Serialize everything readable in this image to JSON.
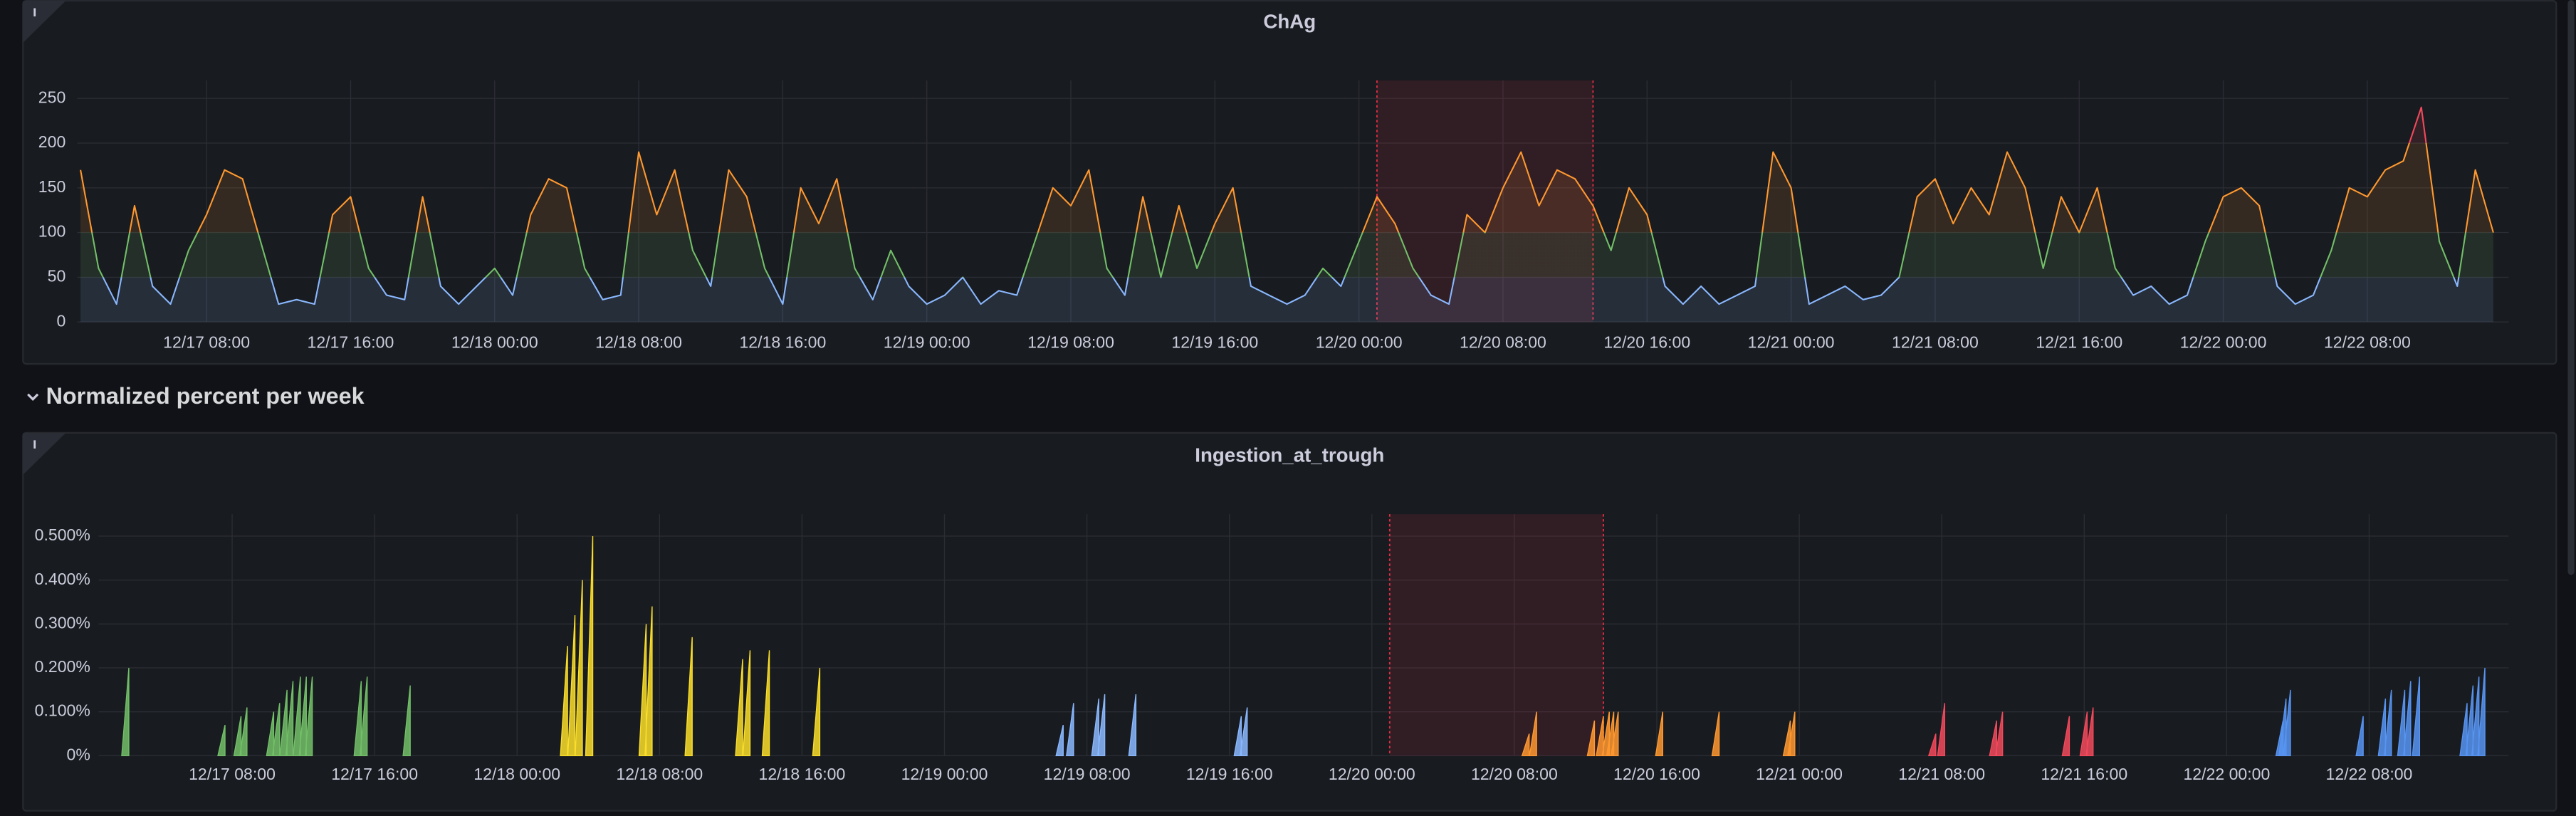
{
  "row_title": "Normalized percent per week",
  "chart_data": [
    {
      "type": "line",
      "title": "ChAg",
      "xlim": [
        "12/17 00:49",
        "12/22 15:51"
      ],
      "xticks": [
        "12/17 08:00",
        "12/17 16:00",
        "12/18 00:00",
        "12/18 08:00",
        "12/18 16:00",
        "12/19 00:00",
        "12/19 08:00",
        "12/19 16:00",
        "12/20 00:00",
        "12/20 08:00",
        "12/20 16:00",
        "12/21 00:00",
        "12/21 08:00",
        "12/21 16:00",
        "12/22 00:00",
        "12/22 08:00"
      ],
      "ylim": [
        0,
        270
      ],
      "yticks": [
        0,
        50,
        100,
        150,
        200,
        250
      ],
      "grid": true,
      "thresholds": [
        {
          "from": 0,
          "color": "#8ab8ff"
        },
        {
          "from": 50,
          "color": "#73bf69"
        },
        {
          "from": 100,
          "color": "#ff9830"
        },
        {
          "from": 200,
          "color": "#f2495c"
        }
      ],
      "annotation": {
        "start": "12/20 01:00",
        "end": "12/20 13:00",
        "color": "#e02f44"
      },
      "x": [
        "12/17 01:00",
        "12/17 02:00",
        "12/17 03:00",
        "12/17 04:00",
        "12/17 05:00",
        "12/17 06:00",
        "12/17 07:00",
        "12/17 08:00",
        "12/17 09:00",
        "12/17 10:00",
        "12/17 11:00",
        "12/17 12:00",
        "12/17 13:00",
        "12/17 14:00",
        "12/17 15:00",
        "12/17 16:00",
        "12/17 17:00",
        "12/17 18:00",
        "12/17 19:00",
        "12/17 20:00",
        "12/17 21:00",
        "12/17 22:00",
        "12/17 23:00",
        "12/18 00:00",
        "12/18 01:00",
        "12/18 02:00",
        "12/18 03:00",
        "12/18 04:00",
        "12/18 05:00",
        "12/18 06:00",
        "12/18 07:00",
        "12/18 08:00",
        "12/18 09:00",
        "12/18 10:00",
        "12/18 11:00",
        "12/18 12:00",
        "12/18 13:00",
        "12/18 14:00",
        "12/18 15:00",
        "12/18 16:00",
        "12/18 17:00",
        "12/18 18:00",
        "12/18 19:00",
        "12/18 20:00",
        "12/18 21:00",
        "12/18 22:00",
        "12/18 23:00",
        "12/19 00:00",
        "12/19 01:00",
        "12/19 02:00",
        "12/19 03:00",
        "12/19 04:00",
        "12/19 05:00",
        "12/19 06:00",
        "12/19 07:00",
        "12/19 08:00",
        "12/19 09:00",
        "12/19 10:00",
        "12/19 11:00",
        "12/19 12:00",
        "12/19 13:00",
        "12/19 14:00",
        "12/19 15:00",
        "12/19 16:00",
        "12/19 17:00",
        "12/19 18:00",
        "12/19 19:00",
        "12/19 20:00",
        "12/19 21:00",
        "12/19 22:00",
        "12/19 23:00",
        "12/20 00:00",
        "12/20 01:00",
        "12/20 02:00",
        "12/20 03:00",
        "12/20 04:00",
        "12/20 05:00",
        "12/20 06:00",
        "12/20 07:00",
        "12/20 08:00",
        "12/20 09:00",
        "12/20 10:00",
        "12/20 11:00",
        "12/20 12:00",
        "12/20 13:00",
        "12/20 14:00",
        "12/20 15:00",
        "12/20 16:00",
        "12/20 17:00",
        "12/20 18:00",
        "12/20 19:00",
        "12/20 20:00",
        "12/20 21:00",
        "12/20 22:00",
        "12/20 23:00",
        "12/21 00:00",
        "12/21 01:00",
        "12/21 02:00",
        "12/21 03:00",
        "12/21 04:00",
        "12/21 05:00",
        "12/21 06:00",
        "12/21 07:00",
        "12/21 08:00",
        "12/21 09:00",
        "12/21 10:00",
        "12/21 11:00",
        "12/21 12:00",
        "12/21 13:00",
        "12/21 14:00",
        "12/21 15:00",
        "12/21 16:00",
        "12/21 17:00",
        "12/21 18:00",
        "12/21 19:00",
        "12/21 20:00",
        "12/21 21:00",
        "12/21 22:00",
        "12/21 23:00",
        "12/22 00:00",
        "12/22 01:00",
        "12/22 02:00",
        "12/22 03:00",
        "12/22 04:00",
        "12/22 05:00",
        "12/22 06:00",
        "12/22 07:00",
        "12/22 08:00",
        "12/22 09:00",
        "12/22 10:00",
        "12/22 11:00",
        "12/22 12:00",
        "12/22 13:00",
        "12/22 14:00",
        "12/22 15:00"
      ],
      "values": [
        170,
        60,
        20,
        130,
        40,
        20,
        80,
        120,
        170,
        160,
        90,
        20,
        25,
        20,
        120,
        140,
        60,
        30,
        25,
        140,
        40,
        20,
        40,
        60,
        30,
        120,
        160,
        150,
        60,
        25,
        30,
        190,
        120,
        170,
        80,
        40,
        170,
        140,
        60,
        20,
        150,
        110,
        160,
        60,
        25,
        80,
        40,
        20,
        30,
        50,
        20,
        35,
        30,
        90,
        150,
        130,
        170,
        60,
        30,
        140,
        50,
        130,
        60,
        110,
        150,
        40,
        30,
        20,
        30,
        60,
        40,
        90,
        140,
        110,
        60,
        30,
        20,
        120,
        100,
        150,
        190,
        130,
        170,
        160,
        130,
        80,
        150,
        120,
        40,
        20,
        40,
        20,
        30,
        40,
        190,
        150,
        20,
        30,
        40,
        25,
        30,
        50,
        140,
        160,
        110,
        150,
        120,
        190,
        150,
        60,
        140,
        100,
        150,
        60,
        30,
        40,
        20,
        30,
        90,
        140,
        150,
        130,
        40,
        20,
        30,
        80,
        150,
        140,
        170,
        180,
        240,
        90,
        40,
        170,
        100
      ]
    },
    {
      "type": "bar",
      "title": "Ingestion_at_trough",
      "xlim": [
        "12/17 00:30",
        "12/22 15:50"
      ],
      "xticks": [
        "12/17 08:00",
        "12/17 16:00",
        "12/18 00:00",
        "12/18 08:00",
        "12/18 16:00",
        "12/19 00:00",
        "12/19 08:00",
        "12/19 16:00",
        "12/20 00:00",
        "12/20 08:00",
        "12/20 16:00",
        "12/21 00:00",
        "12/21 08:00",
        "12/21 16:00",
        "12/22 00:00",
        "12/22 08:00"
      ],
      "ylim": [
        0,
        0.55
      ],
      "yticks": [
        {
          "value": 0,
          "label": "0%"
        },
        {
          "value": 0.1,
          "label": "0.100%"
        },
        {
          "value": 0.2,
          "label": "0.200%"
        },
        {
          "value": 0.3,
          "label": "0.300%"
        },
        {
          "value": 0.4,
          "label": "0.400%"
        },
        {
          "value": 0.5,
          "label": "0.500%"
        }
      ],
      "grid": true,
      "annotation": {
        "start": "12/20 01:00",
        "end": "12/20 13:00",
        "color": "#e02f44"
      },
      "series": [
        {
          "color": "#73bf69",
          "x": [
            "12/17 02:12",
            "12/17 07:36",
            "12/17 08:30",
            "12/17 08:50",
            "12/17 10:20",
            "12/17 10:40",
            "12/17 11:05",
            "12/17 11:25",
            "12/17 11:50",
            "12/17 12:10",
            "12/17 12:30",
            "12/17 15:15",
            "12/17 15:35",
            "12/17 18:00"
          ],
          "values": [
            0.2,
            0.07,
            0.09,
            0.11,
            0.1,
            0.12,
            0.15,
            0.17,
            0.18,
            0.18,
            0.18,
            0.17,
            0.18,
            0.16
          ]
        },
        {
          "color": "#fade2a",
          "x": [
            "12/18 02:50",
            "12/18 03:15",
            "12/18 03:40",
            "12/18 04:15",
            "12/18 07:15",
            "12/18 07:35",
            "12/18 09:50",
            "12/18 12:40",
            "12/18 13:05",
            "12/18 14:10",
            "12/18 17:00"
          ],
          "values": [
            0.25,
            0.32,
            0.4,
            0.5,
            0.3,
            0.34,
            0.27,
            0.22,
            0.24,
            0.24,
            0.2
          ]
        },
        {
          "color": "#8ab8ff",
          "x": [
            "12/19 06:40",
            "12/19 07:15",
            "12/19 08:40",
            "12/19 09:00",
            "12/19 10:45",
            "12/19 16:40",
            "12/19 17:00"
          ],
          "values": [
            0.07,
            0.12,
            0.13,
            0.14,
            0.14,
            0.09,
            0.11
          ]
        },
        {
          "color": "#ff9830",
          "x": [
            "12/20 08:50",
            "12/20 09:15",
            "12/20 12:30",
            "12/20 13:00",
            "12/20 13:20",
            "12/20 13:35",
            "12/20 13:50",
            "12/20 16:20",
            "12/20 19:30",
            "12/20 23:30",
            "12/20 23:45"
          ],
          "values": [
            0.05,
            0.1,
            0.08,
            0.09,
            0.1,
            0.1,
            0.1,
            0.1,
            0.1,
            0.08,
            0.1
          ]
        },
        {
          "color": "#f2495c",
          "x": [
            "12/21 07:40",
            "12/21 08:10",
            "12/21 11:05",
            "12/21 11:25",
            "12/21 15:10",
            "12/21 16:10",
            "12/21 16:30"
          ],
          "values": [
            0.05,
            0.12,
            0.08,
            0.1,
            0.09,
            0.1,
            0.11
          ]
        },
        {
          "color": "#5794f2",
          "x": [
            "12/22 03:10",
            "12/22 03:20",
            "12/22 03:35",
            "12/22 07:40",
            "12/22 08:55",
            "12/22 09:15",
            "12/22 10:00",
            "12/22 10:20",
            "12/22 10:50",
            "12/22 13:30",
            "12/22 13:50",
            "12/22 14:10",
            "12/22 14:30"
          ],
          "values": [
            0.08,
            0.13,
            0.15,
            0.09,
            0.13,
            0.15,
            0.15,
            0.17,
            0.18,
            0.12,
            0.16,
            0.18,
            0.2
          ]
        }
      ]
    }
  ]
}
